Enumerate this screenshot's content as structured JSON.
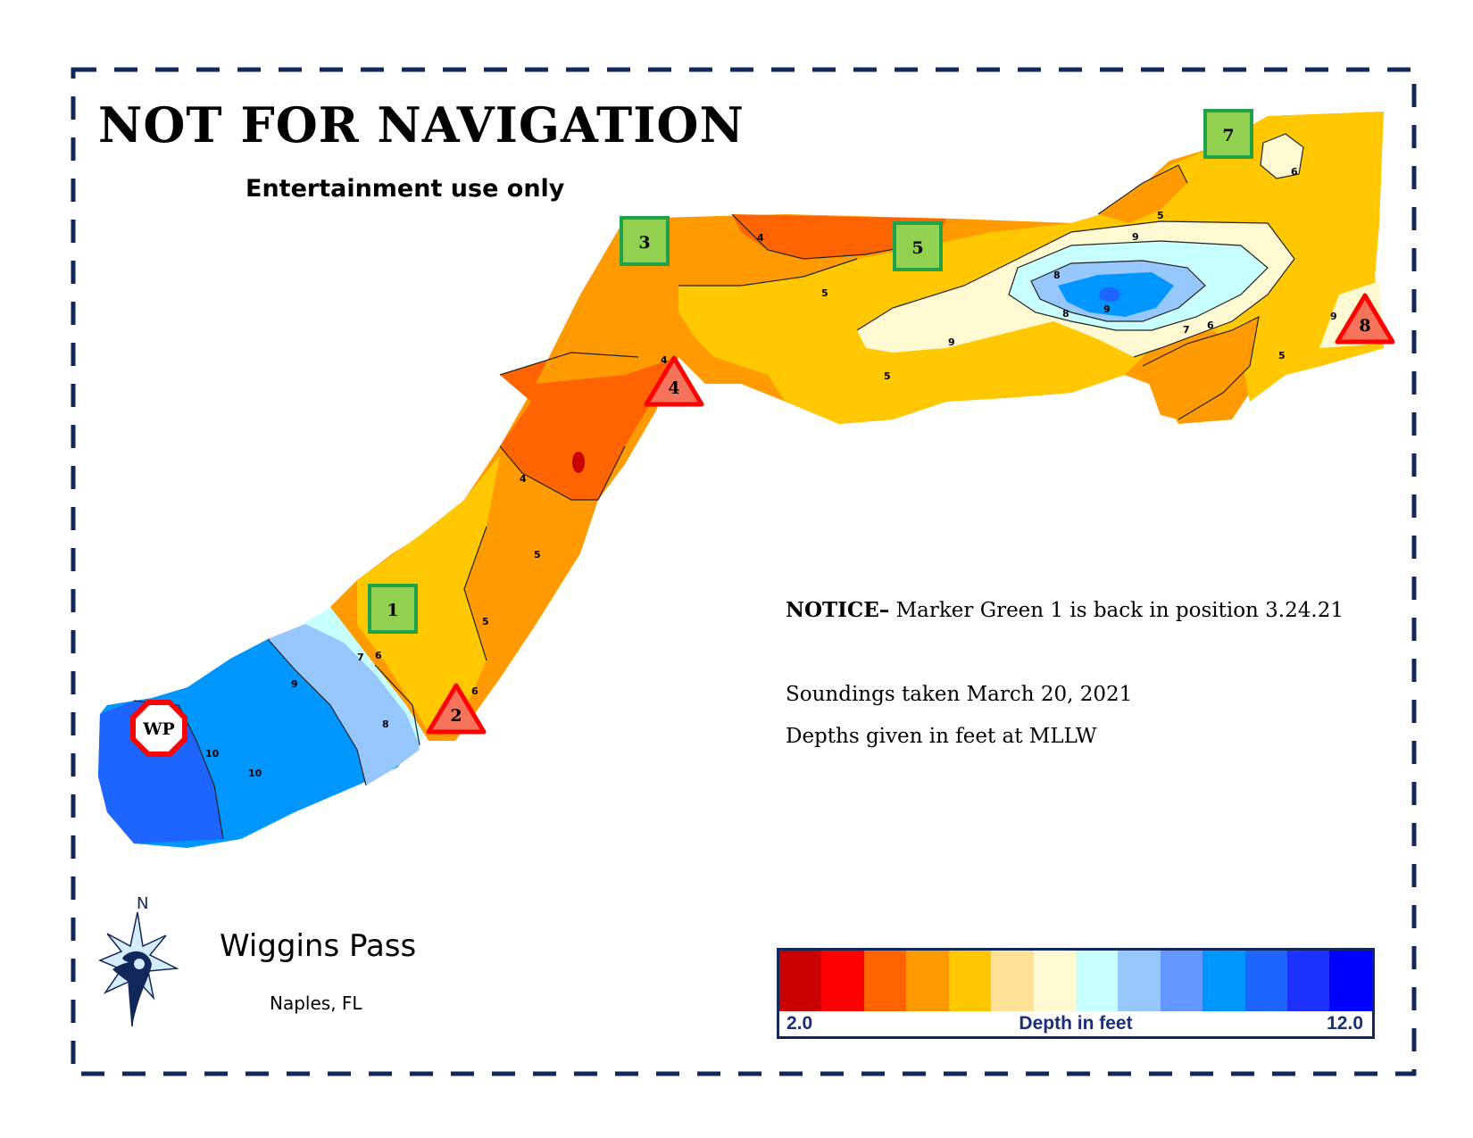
{
  "header": {
    "title": "NOT FOR NAVIGATION",
    "subtitle": "Entertainment use only"
  },
  "notice": {
    "label": "NOTICE–",
    "text": "Marker Green 1 is back in position 3.24.21"
  },
  "survey": {
    "soundings": "Soundings taken March 20, 2021",
    "datum": "Depths given in feet at MLLW"
  },
  "place": {
    "name": "Wiggins Pass",
    "city": "Naples, FL"
  },
  "compass": {
    "north_label": "N",
    "icon": "compass-rose-icon"
  },
  "legend": {
    "title": "Depth in feet",
    "min_label": "2.0",
    "max_label": "12.0",
    "min": 2.0,
    "max": 12.0,
    "colors": [
      "#c80000",
      "#ff0000",
      "#ff6400",
      "#ff9b00",
      "#ffc800",
      "#ffe196",
      "#fffad2",
      "#c8ffff",
      "#96c8ff",
      "#6496ff",
      "#0096ff",
      "#1e64ff",
      "#1e32ff",
      "#0000ff"
    ]
  },
  "markers": [
    {
      "id": "1",
      "type": "green-square"
    },
    {
      "id": "2",
      "type": "red-triangle"
    },
    {
      "id": "3",
      "type": "green-square"
    },
    {
      "id": "4",
      "type": "red-triangle"
    },
    {
      "id": "5",
      "type": "green-square"
    },
    {
      "id": "7",
      "type": "green-square"
    },
    {
      "id": "8",
      "type": "red-triangle"
    },
    {
      "id": "WP",
      "type": "octagon"
    }
  ],
  "contour_labels": [
    "4",
    "5",
    "6",
    "7",
    "8",
    "9",
    "10"
  ],
  "colors": {
    "frame": "#12275a",
    "green_marker": "#92d050",
    "green_marker_border": "#1fa24a",
    "red_marker": "#f4735a",
    "red_marker_border": "#ff0000"
  }
}
